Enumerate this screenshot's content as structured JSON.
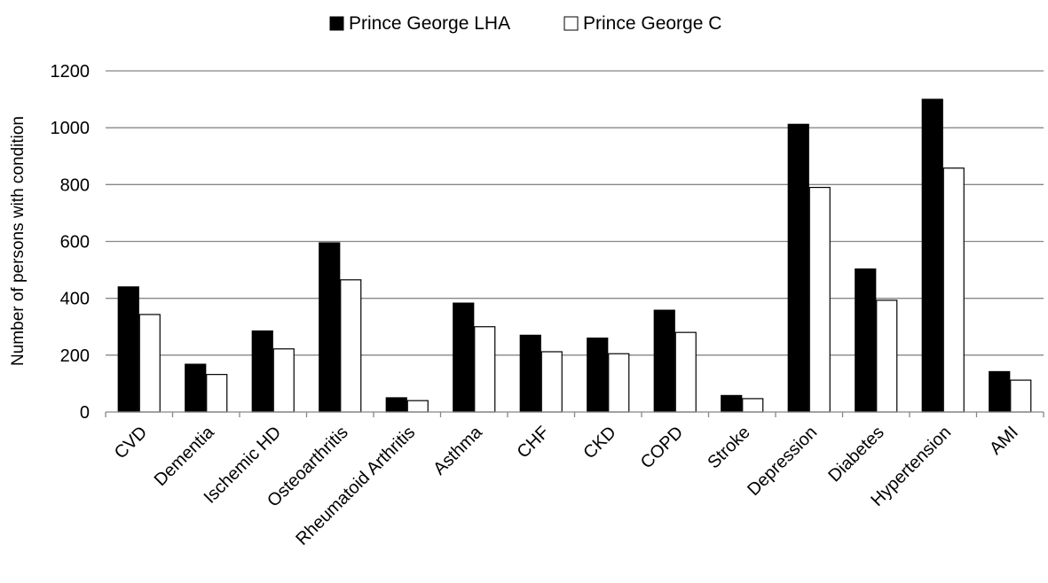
{
  "chart_data": {
    "type": "bar",
    "title": "",
    "xlabel": "",
    "ylabel": "Number of persons with condition",
    "ylim": [
      0,
      1200
    ],
    "yticks": [
      0,
      200,
      400,
      600,
      800,
      1000,
      1200
    ],
    "grid": true,
    "legend_position": "top-center",
    "categories": [
      "CVD",
      "Dementia",
      "Ischemic HD",
      "Osteoarthritis",
      "Rheumatoid Arthritis",
      "Asthma",
      "CHF",
      "CKD",
      "COPD",
      "Stroke",
      "Depression",
      "Diabetes",
      "Hypertension",
      "AMI"
    ],
    "series": [
      {
        "name": "Prince George LHA",
        "color": "#000000",
        "values": [
          440,
          168,
          285,
          595,
          50,
          383,
          270,
          260,
          358,
          58,
          1012,
          503,
          1100,
          142
        ]
      },
      {
        "name": "Prince George C",
        "color": "#ffffff",
        "values": [
          343,
          132,
          222,
          465,
          40,
          300,
          212,
          205,
          280,
          47,
          790,
          393,
          858,
          112
        ]
      }
    ]
  }
}
